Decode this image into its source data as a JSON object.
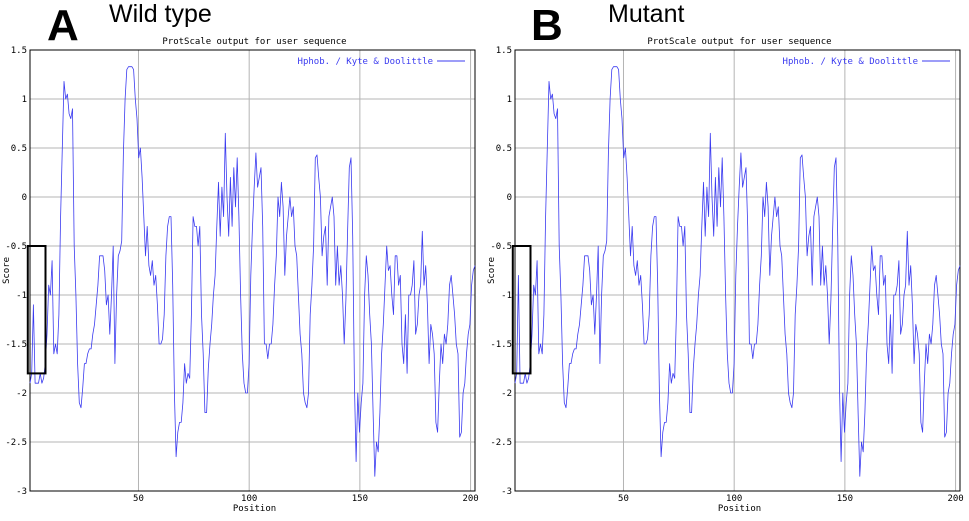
{
  "panels": [
    {
      "letter": "A",
      "caption": "Wild type"
    },
    {
      "letter": "B",
      "caption": "Mutant"
    }
  ],
  "colors": {
    "line": "#3b3bf0",
    "grid": "#b4b4b4",
    "axis": "#000000",
    "box": "#000000"
  },
  "chart_data": [
    {
      "type": "line",
      "title": "ProtScale output for user sequence",
      "xlabel": "Position",
      "ylabel": "Score",
      "xlim": [
        1,
        202
      ],
      "ylim": [
        -3,
        1.5
      ],
      "xticks": [
        50,
        100,
        150,
        200
      ],
      "yticks": [
        1.5,
        1,
        0.5,
        0,
        -0.5,
        -1,
        -1.5,
        -2,
        -2.5,
        -3
      ],
      "ytick_labels": [
        "1.5",
        "1",
        "0.5",
        "0",
        "-0.5",
        "-1",
        "-1.5",
        "-2",
        "-2.5",
        "-3"
      ],
      "grid": true,
      "legend": "top-right",
      "highlight_box": {
        "x": [
          0,
          8
        ],
        "y": [
          -1.8,
          -0.5
        ]
      },
      "series": [
        {
          "name": "Hphob. / Kyte & Doolittle",
          "x_start": 1,
          "values": [
            -1.9,
            -1.8,
            -1.1,
            -1.9,
            -1.9,
            -1.9,
            -1.8,
            -1.9,
            -1.85,
            -1.7,
            -1.4,
            -0.9,
            -1.0,
            -0.65,
            -1.6,
            -1.5,
            -1.6,
            -1.2,
            -0.2,
            0.5,
            1.18,
            1.0,
            1.05,
            0.85,
            0.8,
            0.9,
            -0.5,
            -1.0,
            -1.7,
            -2.1,
            -2.15,
            -1.95,
            -1.7,
            -1.7,
            -1.6,
            -1.55,
            -1.55,
            -1.4,
            -1.3,
            -1.1,
            -0.9,
            -0.6,
            -0.6,
            -0.6,
            -0.75,
            -1.1,
            -1.0,
            -1.4,
            -1.0,
            -0.5,
            -1.7,
            -1.0,
            -0.6,
            -0.55,
            -0.45,
            0.45,
            1.0,
            1.3,
            1.33,
            1.33,
            1.33,
            1.3,
            1.0,
            0.8,
            0.4,
            0.5,
            0.2,
            -0.2,
            -0.6,
            -0.3,
            -0.7,
            -0.8,
            -0.65,
            -0.9,
            -0.8,
            -1.1,
            -1.5,
            -1.5,
            -1.45,
            -1.2,
            -0.6,
            -0.3,
            -0.2,
            -0.2,
            -0.9,
            -2.0,
            -2.65,
            -2.4,
            -2.3,
            -2.3,
            -2.1,
            -1.7,
            -1.9,
            -1.8,
            -1.85,
            -1.2,
            -0.2,
            -0.3,
            -0.3,
            -0.5,
            -0.3,
            -1.2,
            -1.6,
            -2.2,
            -2.2,
            -1.75,
            -1.5,
            -1.3,
            -1.0,
            -0.8,
            -0.3,
            0.15,
            -0.4,
            0.1,
            -0.2,
            0.65,
            0.0,
            -0.4,
            0.2,
            -0.3,
            0.3,
            -0.1,
            0.4,
            -0.2,
            -1.0,
            -1.6,
            -1.9,
            -2.0,
            -2.0,
            -1.7,
            -0.8,
            -0.3,
            0.1,
            0.45,
            0.1,
            0.2,
            0.3,
            -0.3,
            -1.5,
            -1.5,
            -1.65,
            -1.5,
            -1.5,
            -1.3,
            -0.9,
            -0.6,
            0.0,
            -0.2,
            0.15,
            -0.1,
            -0.8,
            -0.4,
            -0.2,
            0.0,
            -0.2,
            -0.1,
            -0.5,
            -0.6,
            -1.0,
            -1.4,
            -1.6,
            -2.0,
            -2.1,
            -2.15,
            -2.0,
            -1.2,
            -0.9,
            -0.5,
            0.4,
            0.43,
            0.2,
            0.0,
            -0.6,
            -0.4,
            -0.3,
            -0.9,
            -0.2,
            -0.1,
            0.0,
            -0.2,
            -0.9,
            -0.5,
            -0.9,
            -0.7,
            -1.0,
            -1.5,
            -1.05,
            -0.35,
            0.3,
            0.4,
            -0.4,
            -1.9,
            -2.7,
            -2.0,
            -2.4,
            -2.1,
            -1.9,
            -1.0,
            -0.6,
            -0.8,
            -1.2,
            -1.5,
            -2.2,
            -2.85,
            -2.5,
            -2.6,
            -2.2,
            -1.6,
            -1.3,
            -0.9,
            -0.5,
            -0.75,
            -0.7,
            -1.0,
            -1.2,
            -0.6,
            -0.6,
            -0.9,
            -0.8,
            -1.5,
            -1.7,
            -1.2,
            -1.8,
            -1.0,
            -1.0,
            -0.9,
            -0.65,
            -1.4,
            -1.3,
            -1.0,
            -0.9,
            -0.35,
            -0.9,
            -0.7,
            -1.1,
            -1.7,
            -1.3,
            -1.4,
            -1.6,
            -2.3,
            -2.4,
            -1.9,
            -1.5,
            -1.7,
            -1.4,
            -1.5,
            -1.3,
            -0.9,
            -0.8,
            -1.0,
            -1.2,
            -1.5,
            -1.6,
            -2.45,
            -2.4,
            -2.0,
            -1.9,
            -1.6,
            -1.4,
            -1.3,
            -0.9,
            -0.75,
            -0.7
          ]
        }
      ]
    },
    {
      "type": "line",
      "title": "ProtScale output for user sequence",
      "xlabel": "Position",
      "ylabel": "Score",
      "xlim": [
        1,
        202
      ],
      "ylim": [
        -3,
        1.5
      ],
      "xticks": [
        50,
        100,
        150,
        200
      ],
      "yticks": [
        1.5,
        1,
        0.5,
        0,
        -0.5,
        -1,
        -1.5,
        -2,
        -2.5,
        -3
      ],
      "ytick_labels": [
        "1.5",
        "1",
        "0.5",
        "0",
        "-0.5",
        "-1",
        "-1.5",
        "-2",
        "-2.5",
        "-3"
      ],
      "grid": true,
      "legend": "top-right",
      "highlight_box": {
        "x": [
          0,
          8
        ],
        "y": [
          -1.8,
          -0.5
        ]
      },
      "series": [
        {
          "name": "Hphob. / Kyte & Doolittle",
          "x_start": 1,
          "values": [
            -1.9,
            -1.8,
            -0.8,
            -1.9,
            -1.9,
            -1.9,
            -1.8,
            -1.9,
            -1.85,
            -1.7,
            -1.4,
            -0.9,
            -1.0,
            -0.65,
            -1.6,
            -1.5,
            -1.6,
            -1.2,
            -0.2,
            0.5,
            1.18,
            1.0,
            1.05,
            0.85,
            0.8,
            0.9,
            -0.5,
            -1.0,
            -1.7,
            -2.1,
            -2.15,
            -1.95,
            -1.7,
            -1.7,
            -1.6,
            -1.55,
            -1.55,
            -1.4,
            -1.3,
            -1.1,
            -0.9,
            -0.6,
            -0.6,
            -0.6,
            -0.75,
            -1.1,
            -1.0,
            -1.4,
            -1.0,
            -0.5,
            -1.7,
            -1.0,
            -0.6,
            -0.55,
            -0.45,
            0.45,
            1.0,
            1.3,
            1.33,
            1.33,
            1.33,
            1.3,
            1.0,
            0.8,
            0.4,
            0.5,
            0.2,
            -0.2,
            -0.6,
            -0.3,
            -0.7,
            -0.8,
            -0.65,
            -0.9,
            -0.8,
            -1.1,
            -1.5,
            -1.5,
            -1.45,
            -1.2,
            -0.6,
            -0.3,
            -0.2,
            -0.2,
            -0.9,
            -2.0,
            -2.65,
            -2.4,
            -2.3,
            -2.3,
            -2.1,
            -1.7,
            -1.9,
            -1.8,
            -1.85,
            -1.2,
            -0.2,
            -0.3,
            -0.3,
            -0.5,
            -0.3,
            -1.2,
            -1.6,
            -2.2,
            -2.2,
            -1.75,
            -1.5,
            -1.3,
            -1.0,
            -0.8,
            -0.3,
            0.15,
            -0.4,
            0.1,
            -0.2,
            0.65,
            0.0,
            -0.4,
            0.2,
            -0.3,
            0.3,
            -0.1,
            0.4,
            -0.2,
            -1.0,
            -1.6,
            -1.9,
            -2.0,
            -2.0,
            -1.7,
            -0.8,
            -0.3,
            0.1,
            0.45,
            0.1,
            0.2,
            0.3,
            -0.3,
            -1.5,
            -1.5,
            -1.65,
            -1.5,
            -1.5,
            -1.3,
            -0.9,
            -0.6,
            0.0,
            -0.2,
            0.15,
            -0.1,
            -0.8,
            -0.4,
            -0.2,
            0.0,
            -0.2,
            -0.1,
            -0.5,
            -0.6,
            -1.0,
            -1.4,
            -1.6,
            -2.0,
            -2.1,
            -2.15,
            -2.0,
            -1.2,
            -0.9,
            -0.5,
            0.4,
            0.43,
            0.2,
            0.0,
            -0.6,
            -0.4,
            -0.3,
            -0.9,
            -0.2,
            -0.1,
            0.0,
            -0.2,
            -0.9,
            -0.5,
            -0.9,
            -0.7,
            -1.0,
            -1.5,
            -1.05,
            -0.35,
            0.3,
            0.4,
            -0.4,
            -1.9,
            -2.7,
            -2.0,
            -2.4,
            -2.1,
            -1.9,
            -1.0,
            -0.6,
            -0.8,
            -1.2,
            -1.5,
            -2.2,
            -2.85,
            -2.5,
            -2.6,
            -2.2,
            -1.6,
            -1.3,
            -0.9,
            -0.5,
            -0.75,
            -0.7,
            -1.0,
            -1.2,
            -0.6,
            -0.6,
            -0.9,
            -0.8,
            -1.5,
            -1.7,
            -1.2,
            -1.8,
            -1.0,
            -1.0,
            -0.9,
            -0.65,
            -1.4,
            -1.3,
            -1.0,
            -0.9,
            -0.35,
            -0.9,
            -0.7,
            -1.1,
            -1.7,
            -1.3,
            -1.4,
            -1.6,
            -2.3,
            -2.4,
            -1.9,
            -1.5,
            -1.7,
            -1.4,
            -1.5,
            -1.3,
            -0.9,
            -0.8,
            -1.0,
            -1.2,
            -1.5,
            -1.6,
            -2.45,
            -2.4,
            -2.0,
            -1.9,
            -1.6,
            -1.4,
            -1.3,
            -0.9,
            -0.75,
            -0.7
          ]
        }
      ]
    }
  ]
}
